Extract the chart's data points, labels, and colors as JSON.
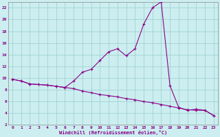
{
  "xlabel": "Windchill (Refroidissement éolien,°C)",
  "background_color": "#cceef0",
  "grid_color": "#99cccc",
  "line_color": "#880088",
  "xlim": [
    -0.5,
    23.5
  ],
  "ylim": [
    2,
    23
  ],
  "xticks": [
    0,
    1,
    2,
    3,
    4,
    5,
    6,
    7,
    8,
    9,
    10,
    11,
    12,
    13,
    14,
    15,
    16,
    17,
    18,
    19,
    20,
    21,
    22,
    23
  ],
  "yticks": [
    2,
    4,
    6,
    8,
    10,
    12,
    14,
    16,
    18,
    20,
    22
  ],
  "series1_x": [
    0,
    1,
    2,
    3,
    4,
    5,
    6,
    7,
    8,
    9,
    10,
    11,
    12,
    13,
    14,
    15,
    16,
    17,
    18,
    19,
    20,
    21,
    22,
    23
  ],
  "series1_y": [
    9.8,
    9.5,
    9.0,
    8.9,
    8.8,
    8.6,
    8.4,
    8.2,
    7.8,
    7.5,
    7.2,
    7.0,
    6.8,
    6.5,
    6.3,
    6.0,
    5.8,
    5.5,
    5.2,
    4.9,
    4.6,
    4.5,
    4.5,
    3.6
  ],
  "series2_x": [
    0,
    1,
    2,
    3,
    4,
    5,
    6,
    7,
    8,
    9,
    10,
    11,
    12,
    13,
    14,
    15,
    16,
    17,
    18,
    19,
    20,
    21,
    22,
    23
  ],
  "series2_y": [
    9.8,
    9.5,
    9.0,
    8.9,
    8.8,
    8.6,
    8.4,
    9.5,
    11.0,
    11.5,
    13.0,
    14.5,
    15.0,
    13.8,
    15.0,
    19.2,
    22.0,
    23.0,
    8.7,
    5.0,
    4.5,
    4.7,
    4.5,
    3.6
  ]
}
